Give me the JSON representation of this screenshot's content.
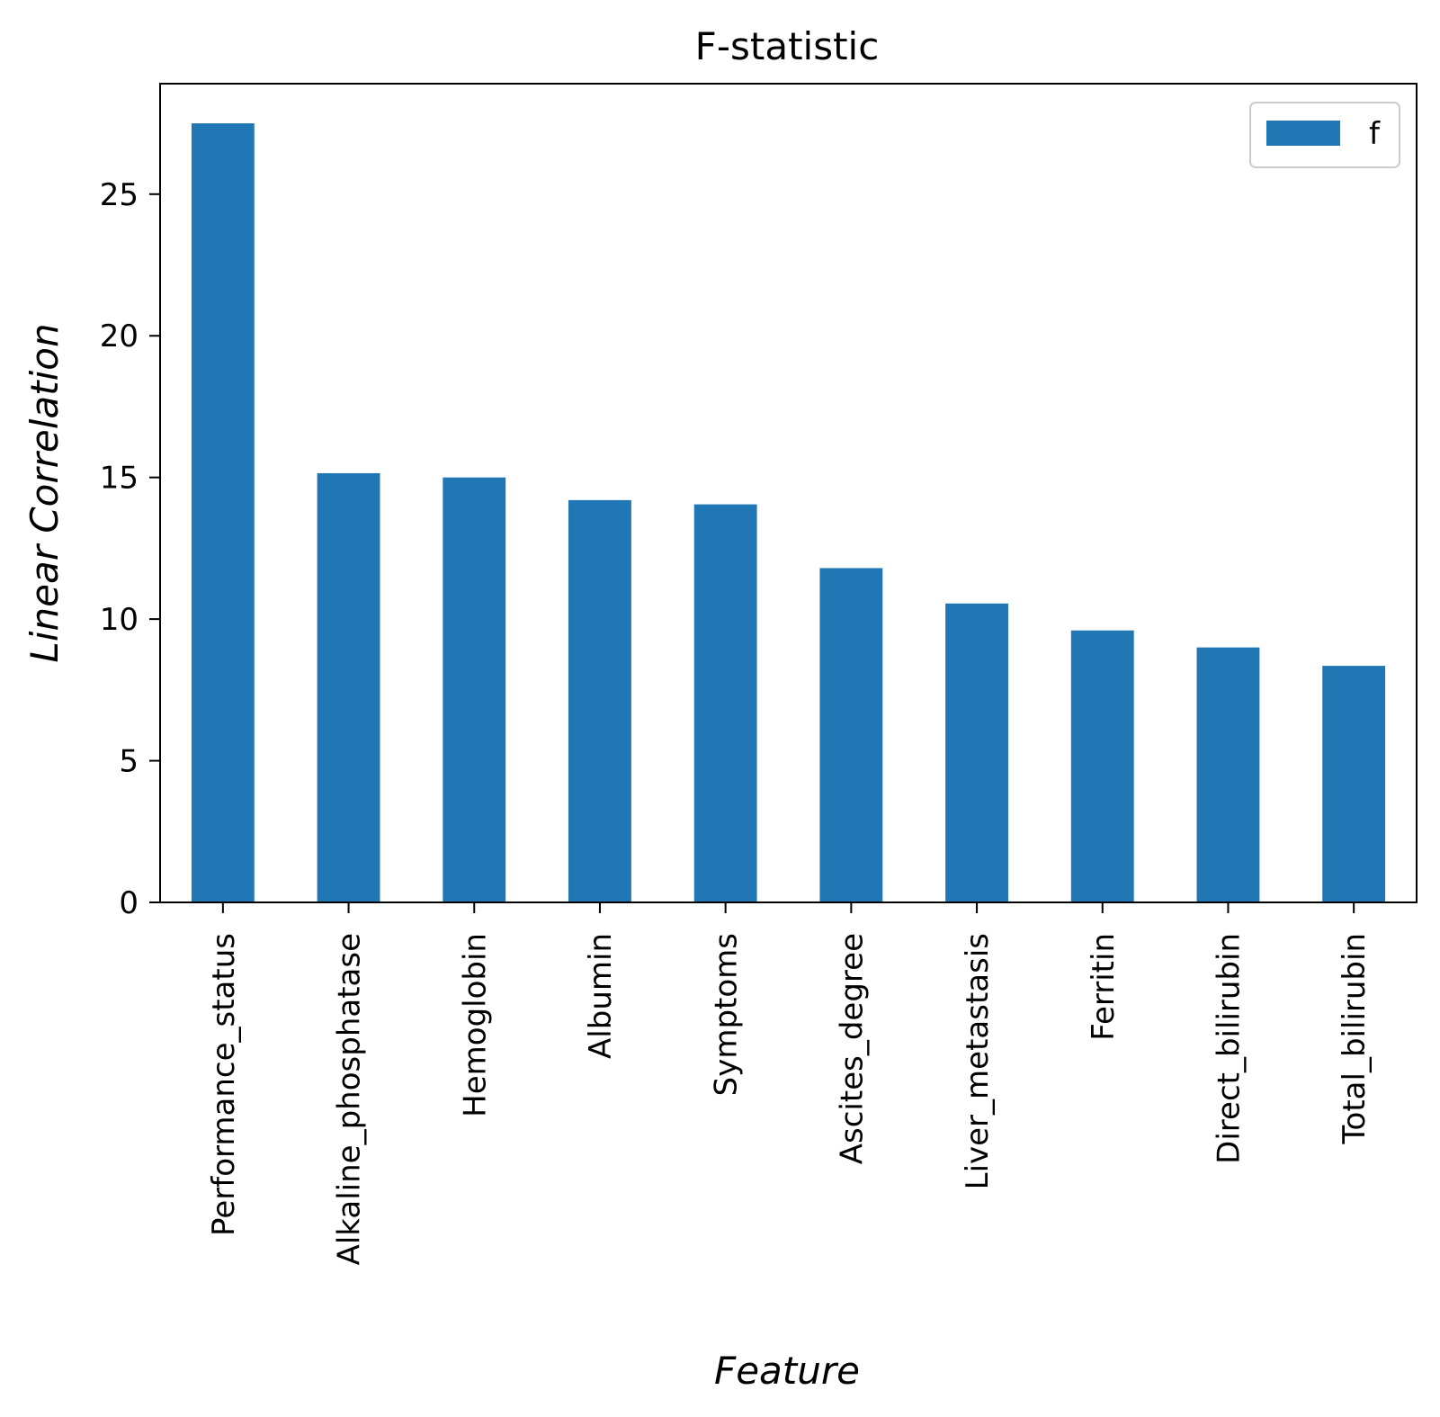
{
  "chart_data": {
    "type": "bar",
    "title": "F-statistic",
    "xlabel": "Feature",
    "ylabel": "Linear Correlation",
    "categories": [
      "Performance_status",
      "Alkaline_phosphatase",
      "Hemoglobin",
      "Albumin",
      "Symptoms",
      "Ascites_degree",
      "Liver_metastasis",
      "Ferritin",
      "Direct_bilirubin",
      "Total_bilirubin"
    ],
    "series": [
      {
        "name": "f",
        "values": [
          27.5,
          15.15,
          15.0,
          14.2,
          14.05,
          11.8,
          10.55,
          9.6,
          9.0,
          8.35
        ]
      }
    ],
    "ylim": [
      0,
      28.9
    ],
    "yticks": [
      0,
      5,
      10,
      15,
      20,
      25
    ],
    "grid": false,
    "legend": "top-right",
    "bar_color": "#2077b4"
  }
}
